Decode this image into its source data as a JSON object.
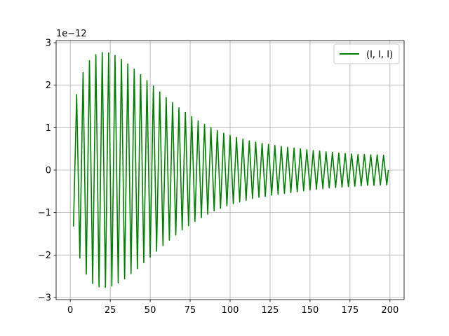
{
  "chart_data": {
    "type": "line",
    "title": "",
    "xlabel": "",
    "ylabel": "",
    "xlim": [
      -8.85,
      208.85
    ],
    "ylim": [
      -3.05e-12,
      3.05e-12
    ],
    "grid": true,
    "legend_position": "top-right",
    "y_offset_text": "1e−12",
    "x_ticks": [
      0,
      25,
      50,
      75,
      100,
      125,
      150,
      175,
      200
    ],
    "x_tick_labels": [
      "0",
      "25",
      "50",
      "75",
      "100",
      "125",
      "150",
      "175",
      "200"
    ],
    "y_ticks": [
      -3e-12,
      -2e-12,
      -1e-12,
      0,
      1e-12,
      2e-12,
      3e-12
    ],
    "y_tick_labels": [
      "−3",
      "−2",
      "−1",
      "0",
      "1",
      "2",
      "3"
    ],
    "series": [
      {
        "name": "(I, I, I)",
        "color": "#008000",
        "x": [
          2,
          4,
          6,
          8,
          10,
          12,
          14,
          16,
          18,
          20,
          22,
          24,
          26,
          28,
          30,
          32,
          34,
          36,
          38,
          40,
          42,
          44,
          46,
          48,
          50,
          52,
          54,
          56,
          58,
          60,
          62,
          64,
          66,
          68,
          70,
          72,
          74,
          76,
          78,
          80,
          82,
          84,
          86,
          88,
          90,
          92,
          94,
          96,
          98,
          100,
          102,
          104,
          106,
          108,
          110,
          112,
          114,
          116,
          118,
          120,
          122,
          124,
          126,
          128,
          130,
          132,
          134,
          136,
          138,
          140,
          142,
          144,
          146,
          148,
          150,
          152,
          154,
          156,
          158,
          160,
          162,
          164,
          166,
          168,
          170,
          172,
          174,
          176,
          178,
          180,
          182,
          184,
          186,
          188,
          190,
          192,
          194,
          196,
          198,
          199
        ],
        "y": [
          -1.33e-12,
          1.78e-12,
          -2.07e-12,
          2.3e-12,
          -2.45e-12,
          2.58e-12,
          -2.67e-12,
          2.72e-12,
          -2.75e-12,
          2.77e-12,
          -2.76e-12,
          2.76e-12,
          -2.73e-12,
          2.7e-12,
          -2.66e-12,
          2.61e-12,
          -2.56e-12,
          2.5e-12,
          -2.44e-12,
          2.38e-12,
          -2.32e-12,
          2.25e-12,
          -2.18e-12,
          2.11e-12,
          -2.05e-12,
          1.98e-12,
          -1.91e-12,
          1.84e-12,
          -1.78e-12,
          1.71e-12,
          -1.65e-12,
          1.59e-12,
          -1.53e-12,
          1.47e-12,
          -1.41e-12,
          1.36e-12,
          -1.31e-12,
          1.26e-12,
          -1.21e-12,
          1.16e-12,
          -1.12e-12,
          1.08e-12,
          -1.04e-12,
          1e-12,
          -9.6e-13,
          9.3e-13,
          -9e-13,
          8.7e-13,
          -8.4e-13,
          8.2e-13,
          -7.9e-13,
          7.7e-13,
          -7.5e-13,
          7.3e-13,
          -7.1e-13,
          6.9e-13,
          -6.7e-13,
          6.6e-13,
          -6.4e-13,
          6.3e-13,
          -6.2e-13,
          6.1e-13,
          -5.9e-13,
          5.8e-13,
          -5.7e-13,
          5.6e-13,
          -5.5e-13,
          5.4e-13,
          -5.3e-13,
          5.2e-13,
          -5.1e-13,
          5e-13,
          -4.9e-13,
          4.8e-13,
          -4.7e-13,
          4.6e-13,
          -4.5e-13,
          4.5e-13,
          -4.4e-13,
          4.3e-13,
          -4.2e-13,
          4.2e-13,
          -4.1e-13,
          4e-13,
          -4e-13,
          3.9e-13,
          -3.9e-13,
          3.8e-13,
          -3.8e-13,
          3.7e-13,
          -3.7e-13,
          3.7e-13,
          -3.6e-13,
          3.6e-13,
          -3.6e-13,
          3.6e-13,
          -3.5e-13,
          3.5e-13,
          -3.5e-13,
          0.0
        ]
      }
    ]
  }
}
